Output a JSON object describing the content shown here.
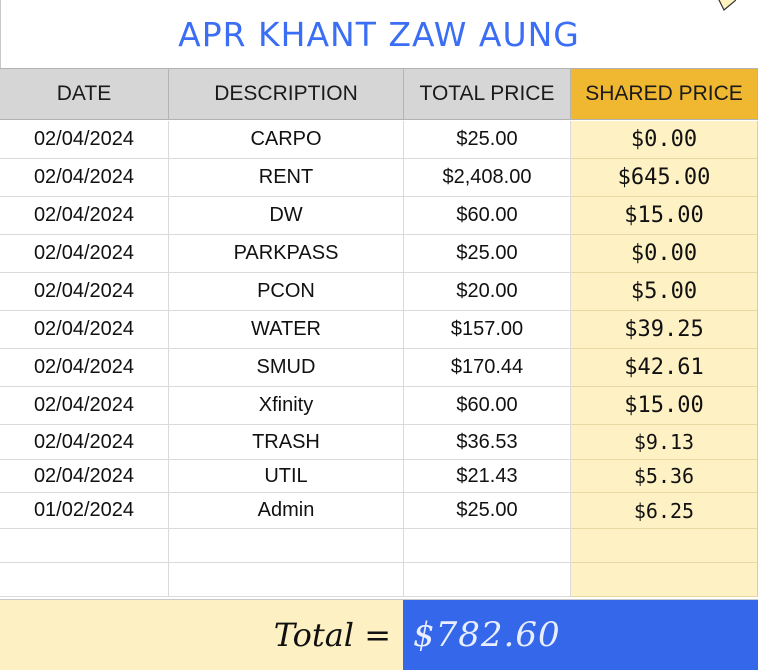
{
  "title": "APR KHANT ZAW AUNG",
  "columns": [
    "DATE",
    "DESCRIPTION",
    "TOTAL PRICE",
    "SHARED PRICE"
  ],
  "rows": [
    {
      "date": "02/04/2024",
      "description": "CARPO",
      "total": "$25.00",
      "shared": "$0.00"
    },
    {
      "date": "02/04/2024",
      "description": "RENT",
      "total": "$2,408.00",
      "shared": "$645.00"
    },
    {
      "date": "02/04/2024",
      "description": "DW",
      "total": "$60.00",
      "shared": "$15.00"
    },
    {
      "date": "02/04/2024",
      "description": "PARKPASS",
      "total": "$25.00",
      "shared": "$0.00"
    },
    {
      "date": "02/04/2024",
      "description": "PCON",
      "total": "$20.00",
      "shared": "$5.00"
    },
    {
      "date": "02/04/2024",
      "description": "WATER",
      "total": "$157.00",
      "shared": "$39.25"
    },
    {
      "date": "02/04/2024",
      "description": "SMUD",
      "total": "$170.44",
      "shared": "$42.61"
    },
    {
      "date": "02/04/2024",
      "description": "Xfinity",
      "total": "$60.00",
      "shared": "$15.00"
    },
    {
      "date": "02/04/2024",
      "description": "TRASH",
      "total": "$36.53",
      "shared": "$9.13"
    },
    {
      "date": "02/04/2024",
      "description": "UTIL",
      "total": "$21.43",
      "shared": "$5.36"
    },
    {
      "date": "01/02/2024",
      "description": "Admin",
      "total": "$25.00",
      "shared": "$6.25"
    },
    {
      "date": "",
      "description": "",
      "total": "",
      "shared": ""
    },
    {
      "date": "",
      "description": "",
      "total": "",
      "shared": ""
    }
  ],
  "footer": {
    "label": "Total =",
    "value": "$782.60"
  },
  "colors": {
    "title": "#3b6ef5",
    "header_bg": "#d6d6d6",
    "shared_header_bg": "#f0b731",
    "shared_cell_bg": "#fef1c4",
    "total_value_bg": "#3467ea"
  },
  "icons": {
    "corner": "pencil-tip-icon"
  }
}
